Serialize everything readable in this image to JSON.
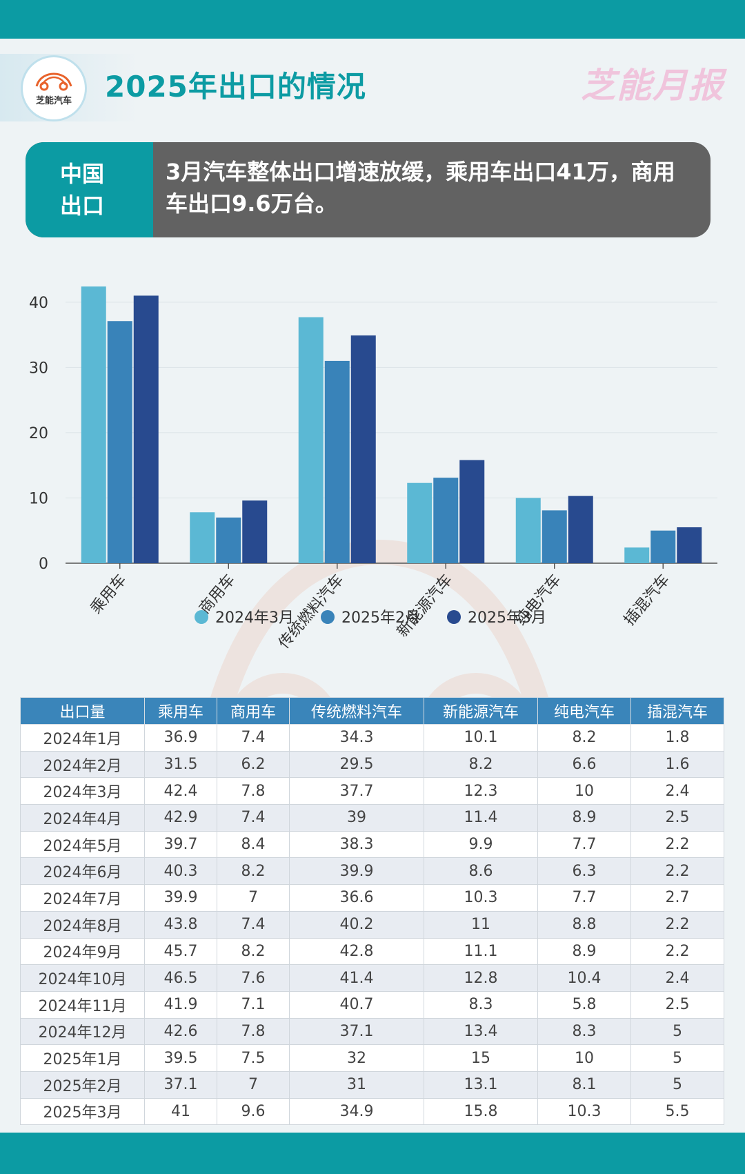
{
  "header": {
    "logo_text": "芝能汽车",
    "title": "2025年出口的情况",
    "brand": "芝能月报"
  },
  "summary": {
    "tag_line1": "中国",
    "tag_line2": "出口",
    "text": "3月汽车整体出口增速放缓，乘用车出口41万，商用车出口9.6万台。"
  },
  "colors": {
    "accent": "#0c9ba3",
    "series": [
      "#5bb8d4",
      "#3983b9",
      "#284a8f"
    ],
    "table_header": "#3a85ba"
  },
  "chart_data": {
    "type": "bar",
    "categories": [
      "乘用车",
      "商用车",
      "传统燃料汽车",
      "新能源汽车",
      "纯电汽车",
      "插混汽车"
    ],
    "series": [
      {
        "name": "2024年3月",
        "values": [
          42.4,
          7.8,
          37.7,
          12.3,
          10,
          2.4
        ]
      },
      {
        "name": "2025年2月",
        "values": [
          37.1,
          7,
          31,
          13.1,
          8.1,
          5
        ]
      },
      {
        "name": "2025年3月",
        "values": [
          41,
          9.6,
          34.9,
          15.8,
          10.3,
          5.5
        ]
      }
    ],
    "yticks": [
      0,
      10,
      20,
      30,
      40
    ],
    "ylim": [
      0,
      44
    ],
    "grid": true,
    "legend": "bottom"
  },
  "table": {
    "headers": [
      "出口量",
      "乘用车",
      "商用车",
      "传统燃料汽车",
      "新能源汽车",
      "纯电汽车",
      "插混汽车"
    ],
    "rows": [
      [
        "2024年1月",
        "36.9",
        "7.4",
        "34.3",
        "10.1",
        "8.2",
        "1.8"
      ],
      [
        "2024年2月",
        "31.5",
        "6.2",
        "29.5",
        "8.2",
        "6.6",
        "1.6"
      ],
      [
        "2024年3月",
        "42.4",
        "7.8",
        "37.7",
        "12.3",
        "10",
        "2.4"
      ],
      [
        "2024年4月",
        "42.9",
        "7.4",
        "39",
        "11.4",
        "8.9",
        "2.5"
      ],
      [
        "2024年5月",
        "39.7",
        "8.4",
        "38.3",
        "9.9",
        "7.7",
        "2.2"
      ],
      [
        "2024年6月",
        "40.3",
        "8.2",
        "39.9",
        "8.6",
        "6.3",
        "2.2"
      ],
      [
        "2024年7月",
        "39.9",
        "7",
        "36.6",
        "10.3",
        "7.7",
        "2.7"
      ],
      [
        "2024年8月",
        "43.8",
        "7.4",
        "40.2",
        "11",
        "8.8",
        "2.2"
      ],
      [
        "2024年9月",
        "45.7",
        "8.2",
        "42.8",
        "11.1",
        "8.9",
        "2.2"
      ],
      [
        "2024年10月",
        "46.5",
        "7.6",
        "41.4",
        "12.8",
        "10.4",
        "2.4"
      ],
      [
        "2024年11月",
        "41.9",
        "7.1",
        "40.7",
        "8.3",
        "5.8",
        "2.5"
      ],
      [
        "2024年12月",
        "42.6",
        "7.8",
        "37.1",
        "13.4",
        "8.3",
        "5"
      ],
      [
        "2025年1月",
        "39.5",
        "7.5",
        "32",
        "15",
        "10",
        "5"
      ],
      [
        "2025年2月",
        "37.1",
        "7",
        "31",
        "13.1",
        "8.1",
        "5"
      ],
      [
        "2025年3月",
        "41",
        "9.6",
        "34.9",
        "15.8",
        "10.3",
        "5.5"
      ]
    ]
  }
}
